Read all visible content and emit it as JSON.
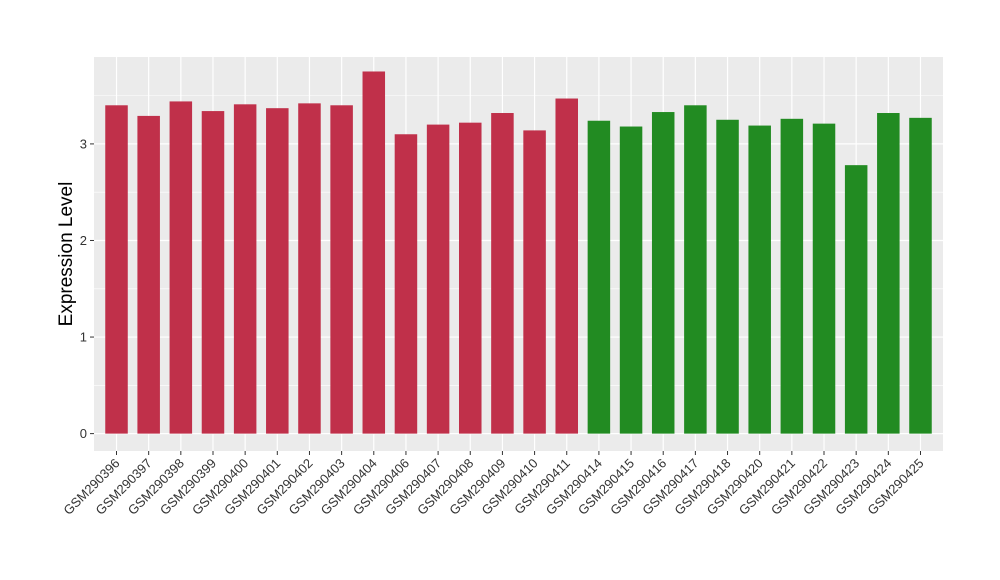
{
  "chart_data": {
    "type": "bar",
    "ylabel": "Expression Level",
    "xlabel": "",
    "ylim": [
      -0.18,
      3.9
    ],
    "yticks": [
      0,
      1,
      2,
      3
    ],
    "grid": true,
    "colors": {
      "group_a": "#C0304A",
      "group_b": "#228B22",
      "panel": "#EBEBEB",
      "grid": "#FFFFFF"
    },
    "categories": [
      "GSM290396",
      "GSM290397",
      "GSM290398",
      "GSM290399",
      "GSM290400",
      "GSM290401",
      "GSM290402",
      "GSM290403",
      "GSM290404",
      "GSM290406",
      "GSM290407",
      "GSM290408",
      "GSM290409",
      "GSM290410",
      "GSM290411",
      "GSM290414",
      "GSM290415",
      "GSM290416",
      "GSM290417",
      "GSM290418",
      "GSM290420",
      "GSM290421",
      "GSM290422",
      "GSM290423",
      "GSM290424",
      "GSM290425"
    ],
    "values": [
      3.4,
      3.29,
      3.44,
      3.34,
      3.41,
      3.37,
      3.42,
      3.4,
      3.75,
      3.1,
      3.2,
      3.22,
      3.32,
      3.14,
      3.47,
      3.24,
      3.18,
      3.33,
      3.4,
      3.25,
      3.19,
      3.26,
      3.21,
      2.78,
      3.32,
      3.27
    ],
    "groups": [
      "a",
      "a",
      "a",
      "a",
      "a",
      "a",
      "a",
      "a",
      "a",
      "a",
      "a",
      "a",
      "a",
      "a",
      "a",
      "b",
      "b",
      "b",
      "b",
      "b",
      "b",
      "b",
      "b",
      "b",
      "b",
      "b"
    ]
  }
}
